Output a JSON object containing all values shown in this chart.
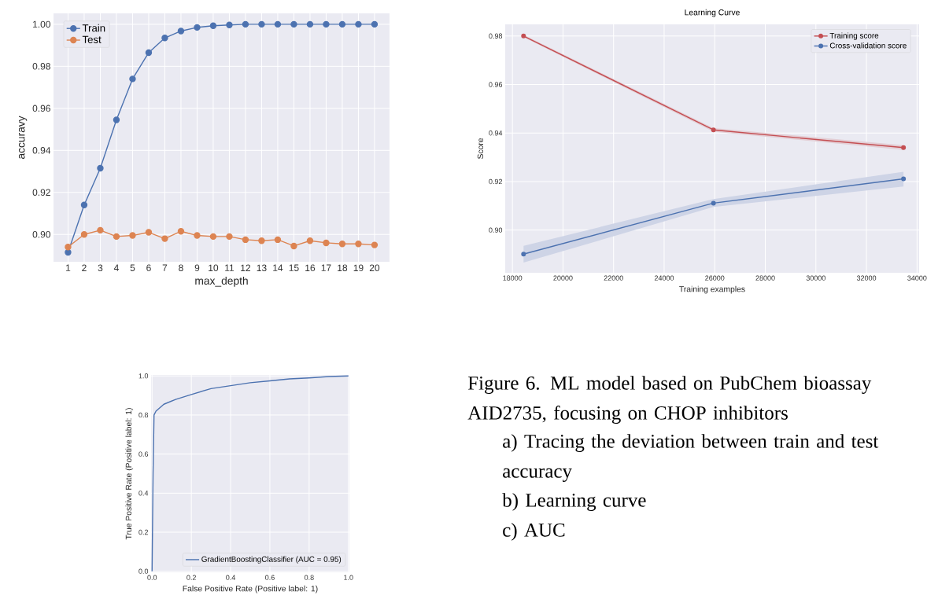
{
  "chart_data": [
    {
      "type": "line",
      "xlabel": "max_depth",
      "ylabel": "accuravy",
      "x": [
        1,
        2,
        3,
        4,
        5,
        6,
        7,
        8,
        9,
        10,
        11,
        12,
        13,
        14,
        15,
        16,
        17,
        18,
        19,
        20
      ],
      "series": [
        {
          "name": "Train",
          "color": "#4c72b0",
          "values": [
            0.8915,
            0.914,
            0.9315,
            0.9545,
            0.974,
            0.9865,
            0.9935,
            0.9968,
            0.9985,
            0.9993,
            0.9997,
            1.0,
            1.0,
            1.0,
            1.0,
            1.0,
            1.0,
            1.0,
            1.0,
            1.0
          ]
        },
        {
          "name": "Test",
          "color": "#dd8452",
          "values": [
            0.894,
            0.9,
            0.902,
            0.899,
            0.8995,
            0.901,
            0.898,
            0.9015,
            0.8995,
            0.899,
            0.899,
            0.8975,
            0.897,
            0.8975,
            0.8945,
            0.897,
            0.896,
            0.8955,
            0.8955,
            0.895
          ]
        }
      ],
      "xlim": [
        0.1,
        20.93
      ],
      "ylim": [
        0.887,
        1.0052
      ],
      "xticks": [
        1,
        2,
        3,
        4,
        5,
        6,
        7,
        8,
        9,
        10,
        11,
        12,
        13,
        14,
        15,
        16,
        17,
        18,
        19,
        20
      ],
      "yticks": [
        {
          "value": 0.9,
          "label": "0.90"
        },
        0.92,
        0.94,
        0.96,
        0.98,
        {
          "value": 1.0,
          "label": "1.00"
        }
      ],
      "grid": true,
      "legend": "top left",
      "marker": "circle"
    },
    {
      "type": "line",
      "title": "Learning Curve",
      "xlabel": "Training examples",
      "ylabel": "Score",
      "x": [
        18440,
        25950,
        33465
      ],
      "series": [
        {
          "name": "Training score",
          "color": "#c44e52",
          "values": [
            0.98,
            0.9413,
            0.934
          ],
          "lower": [
            0.9795,
            0.9406,
            0.933
          ],
          "upper": [
            0.9805,
            0.942,
            0.935
          ]
        },
        {
          "name": "Cross-validation score",
          "color": "#4c72b0",
          "values": [
            0.8901,
            0.9111,
            0.9211
          ],
          "lower": [
            0.8866,
            0.9095,
            0.918
          ],
          "upper": [
            0.8935,
            0.9128,
            0.924
          ]
        }
      ],
      "xlim": [
        17715,
        34083
      ],
      "ylim": [
        0.8824,
        0.9848
      ],
      "xticks": [
        18000,
        20000,
        22000,
        24000,
        26000,
        28000,
        30000,
        32000,
        34000
      ],
      "yticks": [
        {
          "value": 0.9,
          "label": "0.90"
        },
        0.92,
        0.94,
        0.96,
        0.98
      ],
      "grid": true,
      "legend": "top right",
      "marker": "circle"
    },
    {
      "type": "line",
      "xlabel": "False Positive Rate (Positive label: 1)",
      "ylabel": "True Positive Rate (Positive label: 1)",
      "series": [
        {
          "name": "GradientBoostingClassifier (AUC = 0.95)",
          "color": "#4c72b0",
          "x": [
            0,
            0.005,
            0.01,
            0.02,
            0.06,
            0.12,
            0.2,
            0.3,
            0.4,
            0.5,
            0.6,
            0.7,
            0.8,
            0.9,
            1.0
          ],
          "values": [
            0,
            0.5,
            0.8,
            0.82,
            0.855,
            0.88,
            0.905,
            0.935,
            0.95,
            0.965,
            0.975,
            0.985,
            0.99,
            0.997,
            1.0
          ]
        }
      ],
      "xlim": [
        -0.005,
        1.005
      ],
      "ylim": [
        -0.005,
        1.005
      ],
      "xticks": [
        {
          "value": 0,
          "label": "0.0"
        },
        0.2,
        0.4,
        0.6,
        0.8,
        {
          "value": 1,
          "label": "1.0"
        }
      ],
      "yticks": [
        {
          "value": 0,
          "label": "0.0"
        },
        0.2,
        0.4,
        0.6,
        0.8,
        {
          "value": 1,
          "label": "1.0"
        }
      ],
      "grid": true,
      "legend": "bottom right",
      "marker": "none"
    },
    {
      "type": "other",
      "annotations": [
        "Figure 6. ML model based on PubChem bioassay AID2735, focusing on CHOP inhibitors",
        "a)  Tracing the deviation between train and test accuracy",
        "b)  Learning curve",
        "c) AUC"
      ]
    }
  ]
}
